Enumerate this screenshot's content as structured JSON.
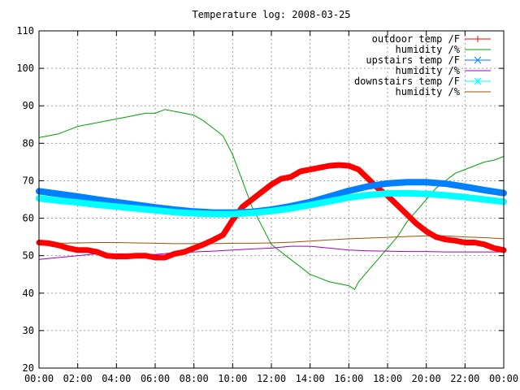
{
  "chart_data": {
    "type": "line",
    "title": "Temperature log: 2008-03-25",
    "xlabel": "",
    "ylabel": "",
    "xlim": [
      "00:00",
      "24:00"
    ],
    "ylim": [
      20,
      110
    ],
    "grid": true,
    "legend_position": "top-right",
    "x_ticks": [
      "00:00",
      "02:00",
      "04:00",
      "06:00",
      "08:00",
      "10:00",
      "12:00",
      "14:00",
      "16:00",
      "18:00",
      "20:00",
      "22:00",
      "00:00"
    ],
    "y_ticks": [
      "20",
      "30",
      "40",
      "50",
      "60",
      "70",
      "80",
      "90",
      "100",
      "110"
    ],
    "series": [
      {
        "name": "outdoor temp /F",
        "color": "#ff0000",
        "marker": "plus",
        "width": 7,
        "x": [
          0,
          0.5,
          1,
          1.5,
          2,
          2.5,
          3,
          3.5,
          4,
          4.5,
          5,
          5.5,
          6,
          6.5,
          7,
          7.5,
          8,
          8.5,
          9,
          9.5,
          10,
          10.5,
          11,
          11.5,
          12,
          12.5,
          13,
          13.5,
          14,
          14.5,
          15,
          15.5,
          16,
          16.5,
          17,
          17.5,
          18,
          18.5,
          19,
          19.5,
          20,
          20.5,
          21,
          21.5,
          22,
          22.5,
          23,
          23.5,
          24
        ],
        "y": [
          53.5,
          53.3,
          52.8,
          52,
          51.5,
          51.5,
          51,
          50,
          49.8,
          49.8,
          50,
          50,
          49.5,
          49.5,
          50.5,
          51,
          52,
          53,
          54.2,
          55.5,
          59.5,
          63,
          65,
          67,
          69,
          70.5,
          71,
          72.5,
          73,
          73.5,
          74,
          74.2,
          74,
          73,
          70.5,
          68,
          66,
          63.5,
          61,
          58.5,
          56.5,
          55,
          54.3,
          54,
          53.5,
          53.5,
          53,
          52,
          51.5
        ]
      },
      {
        "name": "humidity /%",
        "color": "#00a000",
        "marker": "none",
        "width": 1,
        "x": [
          0,
          0.5,
          1,
          1.5,
          2,
          2.5,
          3,
          3.5,
          4,
          4.5,
          5,
          5.5,
          6,
          6.5,
          7,
          7.5,
          8,
          8.5,
          9,
          9.5,
          10,
          10.5,
          11,
          11.5,
          12,
          12.5,
          13,
          13.5,
          14,
          14.5,
          15,
          15.5,
          16,
          16.3,
          16.5,
          17,
          17.5,
          18,
          18.5,
          19,
          19.5,
          20,
          20.5,
          21,
          21.5,
          22,
          22.5,
          23,
          23.5,
          24
        ],
        "y": [
          81.5,
          82,
          82.5,
          83.5,
          84.5,
          85,
          85.5,
          86,
          86.5,
          87,
          87.5,
          88,
          88,
          89,
          88.5,
          88,
          87.5,
          86,
          84,
          82,
          77,
          70,
          63,
          58,
          53,
          51,
          49,
          47,
          45,
          44,
          43,
          42.5,
          42,
          41,
          43,
          46,
          49,
          52,
          55,
          59,
          62,
          65,
          68,
          70,
          72,
          73,
          74,
          75,
          75.5,
          76.5
        ]
      },
      {
        "name": "upstairs temp /F",
        "color": "#0080ff",
        "marker": "cross",
        "width": 8,
        "x": [
          0,
          1,
          2,
          3,
          4,
          5,
          6,
          7,
          8,
          9,
          10,
          11,
          12,
          13,
          14,
          15,
          16,
          17,
          18,
          19,
          20,
          21,
          22,
          23,
          24
        ],
        "y": [
          67.2,
          66.5,
          65.8,
          65,
          64.3,
          63.6,
          62.9,
          62.3,
          61.8,
          61.5,
          61.5,
          61.7,
          62.3,
          63.2,
          64.3,
          65.8,
          67.3,
          68.5,
          69.3,
          69.6,
          69.6,
          69.2,
          68.4,
          67.5,
          66.7
        ]
      },
      {
        "name": "humidity /%",
        "color": "#a000c0",
        "marker": "none",
        "width": 1,
        "x": [
          0,
          1,
          2,
          3,
          4,
          5,
          6,
          7,
          8,
          9,
          10,
          11,
          12,
          13,
          14,
          15,
          16,
          17,
          18,
          19,
          20,
          21,
          22,
          23,
          24
        ],
        "y": [
          49,
          49.5,
          50,
          50.5,
          50.5,
          50.5,
          50.3,
          50.8,
          51,
          51.2,
          51.5,
          51.8,
          52,
          52.5,
          52.5,
          52,
          51.5,
          51.3,
          51.2,
          51.1,
          51.1,
          51,
          51,
          51,
          51
        ]
      },
      {
        "name": "downstairs temp /F",
        "color": "#00ffff",
        "marker": "star",
        "width": 8,
        "x": [
          0,
          1,
          2,
          3,
          4,
          5,
          6,
          7,
          8,
          9,
          10,
          11,
          12,
          13,
          14,
          15,
          16,
          17,
          18,
          19,
          20,
          21,
          22,
          23,
          24
        ],
        "y": [
          65.3,
          64.7,
          64.2,
          63.6,
          63.1,
          62.6,
          62.1,
          61.6,
          61.3,
          61.1,
          61.1,
          61.4,
          61.9,
          62.6,
          63.5,
          64.5,
          65.5,
          66.2,
          66.6,
          66.7,
          66.5,
          66.1,
          65.6,
          65,
          64.4
        ]
      },
      {
        "name": "humidity /%",
        "color": "#a05000",
        "marker": "none",
        "width": 1,
        "x": [
          0,
          1,
          2,
          3,
          4,
          5,
          6,
          7,
          8,
          9,
          10,
          11,
          12,
          13,
          14,
          15,
          16,
          17,
          18,
          19,
          20,
          21,
          22,
          23,
          24
        ],
        "y": [
          53.2,
          53.3,
          53.4,
          53.5,
          53.5,
          53.4,
          53.3,
          53.2,
          53.2,
          53.2,
          53.3,
          53.3,
          53.4,
          53.6,
          53.9,
          54.2,
          54.5,
          54.7,
          54.9,
          55.1,
          55.3,
          55.3,
          55,
          54.8,
          54.5
        ]
      }
    ]
  }
}
